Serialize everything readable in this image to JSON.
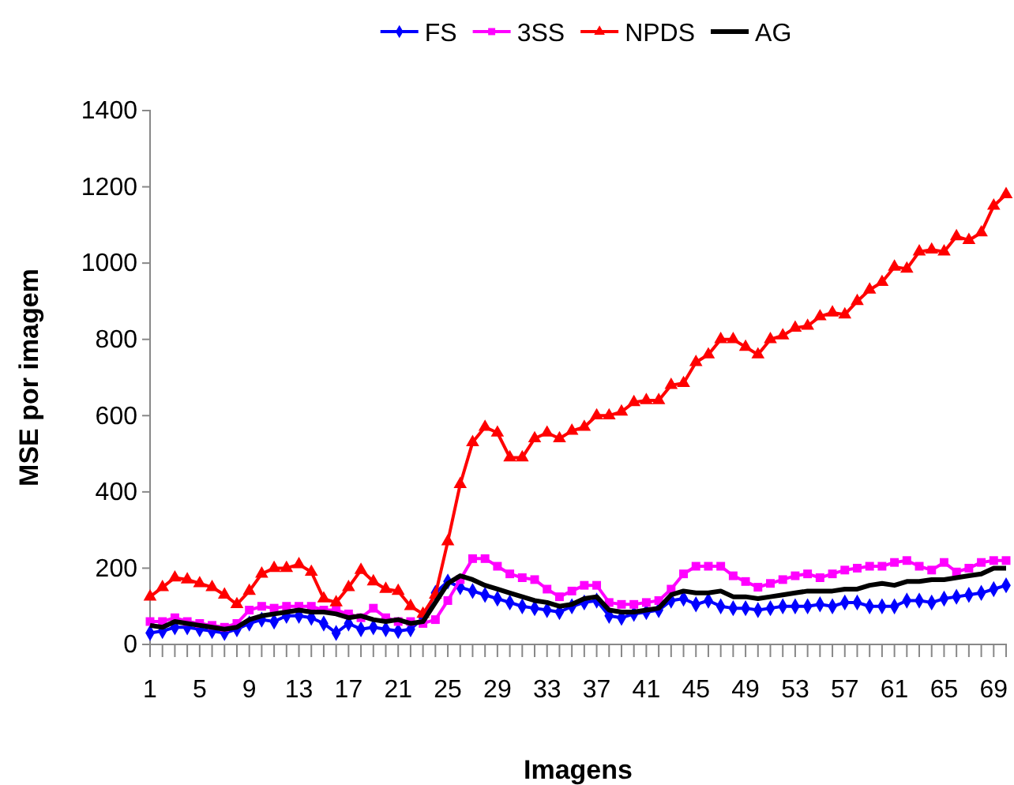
{
  "chart_data": {
    "type": "line",
    "xlabel": "Imagens",
    "ylabel": "MSE por imagem",
    "legend": "top",
    "grid": false,
    "categories": [
      "1",
      null,
      null,
      null,
      "5",
      null,
      null,
      null,
      "9",
      null,
      null,
      null,
      "13",
      null,
      null,
      null,
      "17",
      null,
      null,
      null,
      "21",
      null,
      null,
      null,
      "25",
      null,
      null,
      null,
      "29",
      null,
      null,
      null,
      "33",
      null,
      null,
      null,
      "37",
      null,
      null,
      null,
      "41",
      null,
      null,
      null,
      "45",
      null,
      null,
      null,
      "49",
      null,
      null,
      null,
      "53",
      null,
      null,
      null,
      "57",
      null,
      null,
      null,
      "61",
      null,
      null,
      null,
      "65",
      null,
      null,
      null,
      "69",
      null
    ],
    "ylim": [
      0,
      1400
    ],
    "yticks": [
      0,
      200,
      400,
      600,
      800,
      1000,
      1200,
      1400
    ],
    "series": [
      {
        "name": "FS",
        "color": "#0000ff",
        "marker": "diamond",
        "values": [
          30,
          35,
          45,
          45,
          40,
          35,
          30,
          40,
          55,
          65,
          60,
          75,
          75,
          70,
          55,
          30,
          55,
          40,
          45,
          40,
          35,
          40,
          70,
          135,
          165,
          150,
          140,
          130,
          120,
          110,
          100,
          95,
          90,
          85,
          100,
          110,
          115,
          75,
          70,
          80,
          85,
          90,
          115,
          120,
          105,
          115,
          100,
          95,
          95,
          90,
          95,
          100,
          100,
          100,
          105,
          100,
          110,
          110,
          100,
          100,
          100,
          115,
          115,
          110,
          120,
          125,
          130,
          135,
          145,
          155
        ]
      },
      {
        "name": "3SS",
        "color": "#ff00ff",
        "marker": "square",
        "values": [
          60,
          60,
          70,
          60,
          55,
          50,
          45,
          55,
          90,
          100,
          95,
          100,
          100,
          100,
          90,
          90,
          80,
          70,
          95,
          70,
          60,
          60,
          55,
          65,
          115,
          170,
          225,
          225,
          205,
          185,
          175,
          170,
          145,
          125,
          140,
          155,
          155,
          110,
          105,
          105,
          110,
          115,
          145,
          185,
          205,
          205,
          205,
          180,
          165,
          150,
          160,
          170,
          180,
          185,
          175,
          185,
          195,
          200,
          205,
          205,
          215,
          220,
          205,
          195,
          215,
          190,
          200,
          215,
          220,
          220
        ]
      },
      {
        "name": "NPDS",
        "color": "#ff0000",
        "marker": "triangle",
        "values": [
          125,
          150,
          175,
          170,
          160,
          150,
          130,
          105,
          140,
          185,
          200,
          200,
          210,
          190,
          120,
          110,
          150,
          195,
          165,
          145,
          140,
          100,
          80,
          130,
          270,
          420,
          530,
          570,
          555,
          490,
          490,
          540,
          555,
          540,
          560,
          570,
          600,
          600,
          610,
          635,
          640,
          640,
          680,
          685,
          740,
          760,
          800,
          800,
          780,
          760,
          800,
          810,
          830,
          835,
          860,
          870,
          865,
          900,
          930,
          950,
          990,
          985,
          1030,
          1035,
          1030,
          1070,
          1060,
          1080,
          1150,
          1180
        ]
      },
      {
        "name": "AG",
        "color": "#000000",
        "marker": "none",
        "values": [
          50,
          45,
          60,
          55,
          50,
          45,
          40,
          45,
          65,
          75,
          80,
          85,
          90,
          85,
          85,
          80,
          70,
          75,
          65,
          60,
          65,
          55,
          60,
          110,
          160,
          180,
          170,
          155,
          145,
          135,
          125,
          115,
          110,
          100,
          105,
          120,
          125,
          90,
          85,
          85,
          90,
          95,
          130,
          140,
          135,
          135,
          140,
          125,
          125,
          120,
          125,
          130,
          135,
          140,
          140,
          140,
          145,
          145,
          155,
          160,
          155,
          165,
          165,
          170,
          170,
          175,
          180,
          185,
          200,
          200
        ]
      }
    ]
  }
}
